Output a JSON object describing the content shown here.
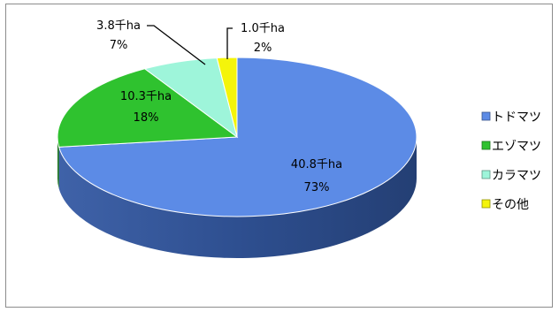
{
  "chart_data": {
    "type": "pie",
    "title": "",
    "unit": "千ha",
    "slices": [
      {
        "name": "トドマツ",
        "value": 40.8,
        "value_label": "40.8千ha",
        "percent_label": "73%",
        "color": "#5c8be6"
      },
      {
        "name": "エゾマツ",
        "value": 10.3,
        "value_label": "10.3千ha",
        "percent_label": "18%",
        "color": "#2fc22f"
      },
      {
        "name": "カラマツ",
        "value": 3.8,
        "value_label": "3.8千ha",
        "percent_label": "7%",
        "color": "#9ef5da"
      },
      {
        "name": "その他",
        "value": 1.0,
        "value_label": "1.0千ha",
        "percent_label": "2%",
        "color": "#f4f40a"
      }
    ],
    "legend_position": "right",
    "style": "3d-pie"
  }
}
